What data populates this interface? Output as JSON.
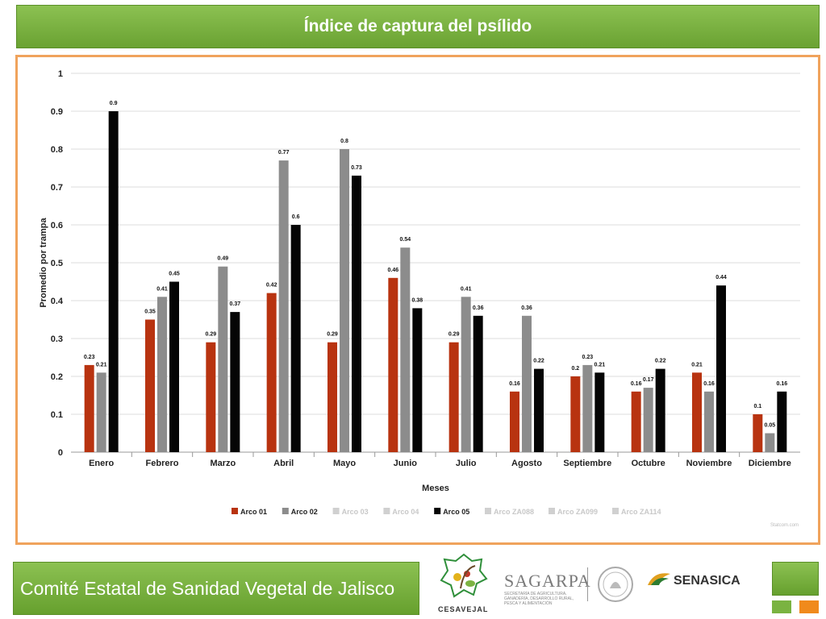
{
  "header": {
    "title": "Índice de captura del psílido"
  },
  "footer": {
    "org_name": "Comité Estatal de Sanidad Vegetal de Jalisco"
  },
  "logos": {
    "cesavejal": "CESAVEJAL",
    "sagarpa": "SAGARPA",
    "sagarpa_sub": "SECRETARÍA DE AGRICULTURA, GANADERÍA, DESARROLLO RURAL, PESCA Y ALIMENTACIÓN",
    "senasica": "SENASICA"
  },
  "chart_data": {
    "type": "bar",
    "xlabel": "Meses",
    "ylabel": "Promedio por trampa",
    "ylim": [
      0,
      1
    ],
    "yticks": [
      0,
      0.1,
      0.2,
      0.3,
      0.4,
      0.5,
      0.6,
      0.7,
      0.8,
      0.9,
      1
    ],
    "grid": true,
    "legend_position": "bottom",
    "watermark": "Statcom.com",
    "categories": [
      "Enero",
      "Febrero",
      "Marzo",
      "Abril",
      "Mayo",
      "Junio",
      "Julio",
      "Agosto",
      "Septiembre",
      "Octubre",
      "Noviembre",
      "Diciembre"
    ],
    "series": [
      {
        "name": "Arco 01",
        "color": "#b83310",
        "values": [
          0.23,
          0.35,
          0.29,
          0.42,
          0.29,
          0.46,
          0.29,
          0.16,
          0.2,
          0.16,
          0.21,
          0.1
        ]
      },
      {
        "name": "Arco 02",
        "color": "#8c8c8c",
        "values": [
          0.21,
          0.41,
          0.49,
          0.77,
          0.8,
          0.54,
          0.41,
          0.36,
          0.23,
          0.17,
          0.16,
          0.05
        ]
      },
      {
        "name": "Arco 05",
        "color": "#050505",
        "values": [
          0.9,
          0.45,
          0.37,
          0.6,
          0.73,
          0.38,
          0.36,
          0.22,
          0.21,
          0.22,
          0.44,
          0.16
        ]
      }
    ],
    "legend": [
      {
        "name": "Arco 01",
        "color": "#b83310",
        "active": true
      },
      {
        "name": "Arco 02",
        "color": "#8c8c8c",
        "active": true
      },
      {
        "name": "Arco 03",
        "color": "#d0d0d0",
        "active": false
      },
      {
        "name": "Arco 04",
        "color": "#d0d0d0",
        "active": false
      },
      {
        "name": "Arco 05",
        "color": "#050505",
        "active": true
      },
      {
        "name": "Arco ZA088",
        "color": "#d0d0d0",
        "active": false
      },
      {
        "name": "Arco ZA099",
        "color": "#d0d0d0",
        "active": false
      },
      {
        "name": "Arco ZA114",
        "color": "#d0d0d0",
        "active": false
      }
    ]
  }
}
